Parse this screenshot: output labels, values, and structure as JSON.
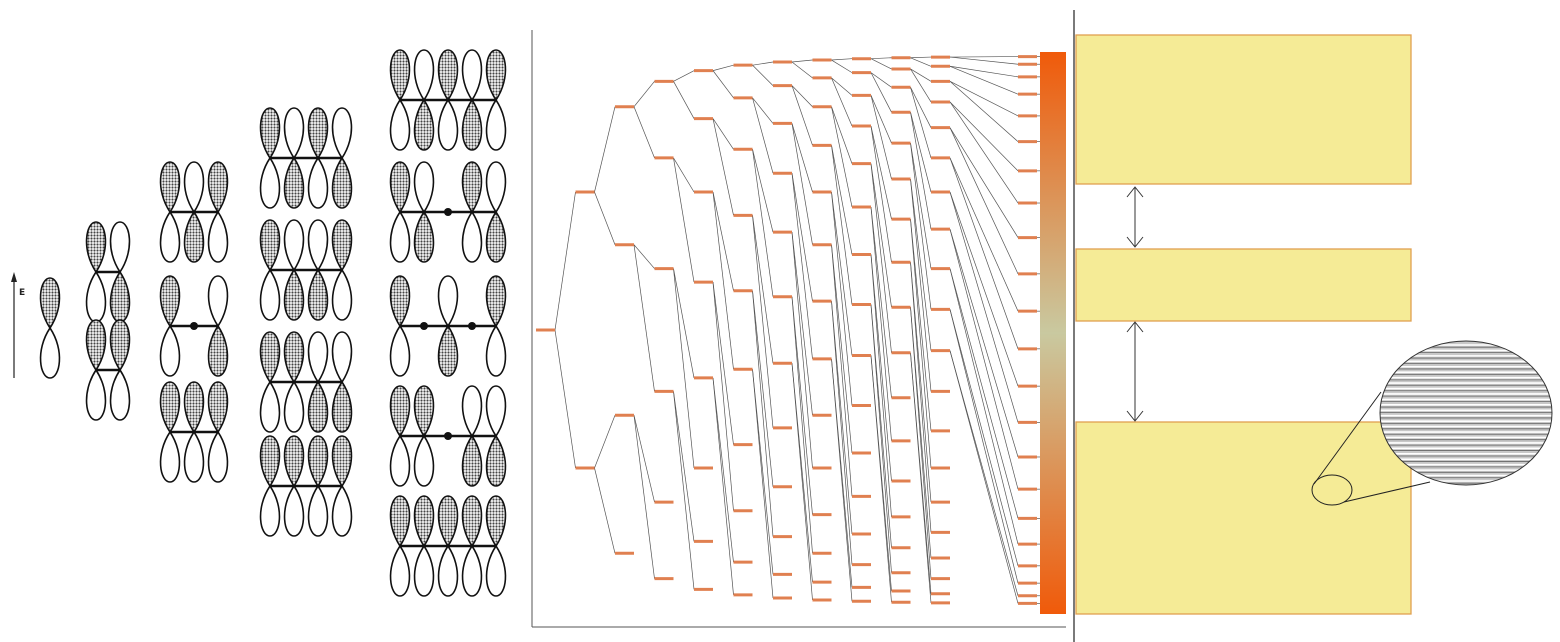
{
  "energy_axis": {
    "label": "E"
  },
  "orbital_diagrams": {
    "columns": [
      {
        "atoms": 1,
        "states": [
          {
            "phases": [
              1
            ],
            "nodes": []
          }
        ]
      },
      {
        "atoms": 2,
        "states": [
          {
            "phases": [
              1,
              -1
            ],
            "nodes": []
          },
          {
            "phases": [
              1,
              1
            ],
            "nodes": []
          }
        ]
      },
      {
        "atoms": 3,
        "states": [
          {
            "phases": [
              1,
              -1,
              1
            ],
            "nodes": []
          },
          {
            "phases": [
              1,
              0,
              -1
            ],
            "nodes": [
              1
            ]
          },
          {
            "phases": [
              1,
              1,
              1
            ],
            "nodes": []
          }
        ]
      },
      {
        "atoms": 4,
        "states": [
          {
            "phases": [
              1,
              -1,
              1,
              -1
            ],
            "nodes": []
          },
          {
            "phases": [
              1,
              -1,
              -1,
              1
            ],
            "nodes": []
          },
          {
            "phases": [
              1,
              1,
              -1,
              -1
            ],
            "nodes": []
          },
          {
            "phases": [
              1,
              1,
              1,
              1
            ],
            "nodes": []
          }
        ]
      },
      {
        "atoms": 5,
        "states": [
          {
            "phases": [
              1,
              -1,
              1,
              -1,
              1
            ],
            "nodes": []
          },
          {
            "phases": [
              1,
              -1,
              0,
              1,
              -1
            ],
            "nodes": [
              2
            ]
          },
          {
            "phases": [
              1,
              0,
              -1,
              0,
              1
            ],
            "nodes": [
              1,
              3
            ]
          },
          {
            "phases": [
              1,
              1,
              0,
              -1,
              -1
            ],
            "nodes": [
              2
            ]
          },
          {
            "phases": [
              1,
              1,
              1,
              1,
              1
            ],
            "nodes": []
          }
        ]
      }
    ]
  },
  "level_diagram": {
    "level_counts": [
      1,
      2,
      4,
      6,
      8,
      10,
      12,
      14,
      16,
      18,
      20,
      22
    ],
    "band_colors": {
      "top": "#f05a0a",
      "middle": "#c9c9a0",
      "bottom": "#f05a0a"
    },
    "level_color": "#e08050"
  },
  "band_diagram": {
    "band_fill": "#f5eb96",
    "band_stroke": "#e0a050",
    "bands": [
      "upper-band",
      "middle-band",
      "lower-band"
    ],
    "gap_arrows": 2,
    "magnifier_line_count": 26
  }
}
